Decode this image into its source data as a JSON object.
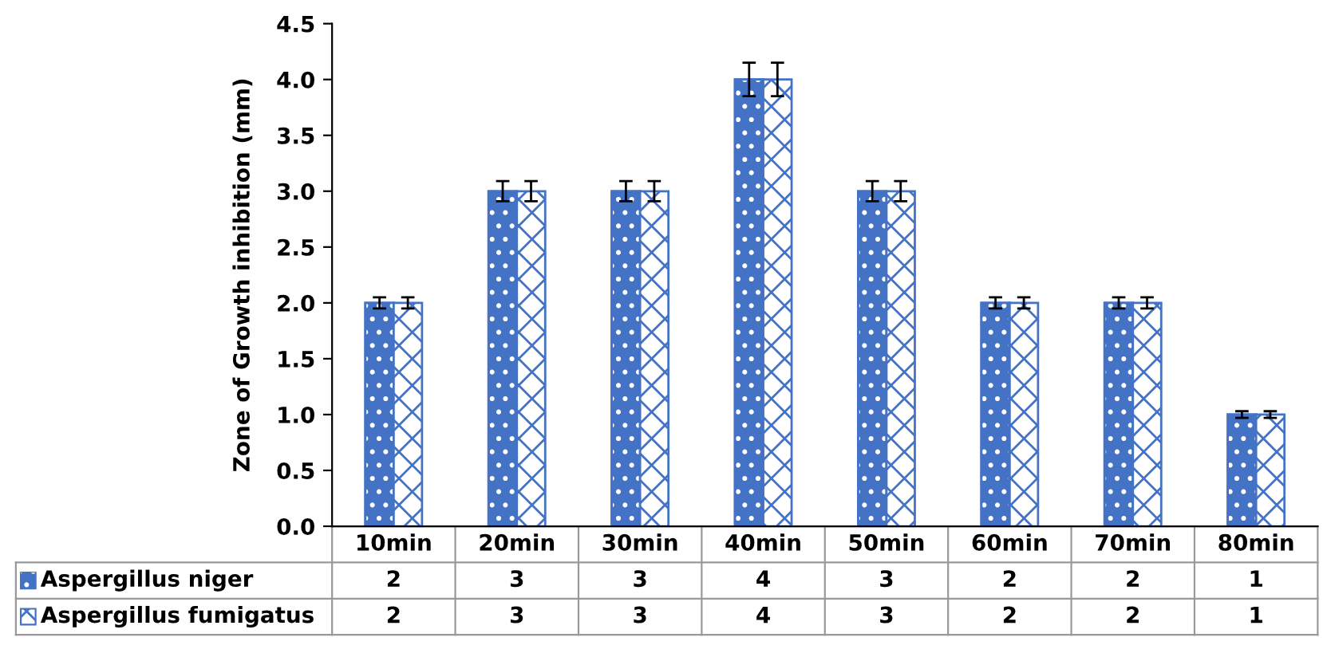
{
  "chart_data": {
    "type": "bar",
    "ylabel": "Zone of Growth inhibition (mm)",
    "categories": [
      "10min",
      "20min",
      "30min",
      "40min",
      "50min",
      "60min",
      "70min",
      "80min"
    ],
    "series": [
      {
        "name": "Aspergillus niger",
        "color": "#4472c4",
        "values": [
          2,
          3,
          3,
          4,
          3,
          2,
          2,
          1
        ],
        "errors": [
          0.05,
          0.09,
          0.09,
          0.15,
          0.09,
          0.05,
          0.05,
          0.03
        ]
      },
      {
        "name": "Aspergillus fumigatus",
        "color": "#4472c4",
        "values": [
          2,
          3,
          3,
          4,
          3,
          2,
          2,
          1
        ],
        "errors": [
          0.05,
          0.09,
          0.09,
          0.15,
          0.09,
          0.05,
          0.05,
          0.03
        ]
      }
    ],
    "ylim": [
      0,
      4.5
    ],
    "yticks": [
      {
        "value": 0,
        "label": "0.0"
      },
      {
        "value": 0.5,
        "label": "0.5"
      },
      {
        "value": 1,
        "label": "1.0"
      },
      {
        "value": 1.5,
        "label": "1.5"
      },
      {
        "value": 2,
        "label": "2.0"
      },
      {
        "value": 2.5,
        "label": "2.5"
      },
      {
        "value": 3,
        "label": "3.0"
      },
      {
        "value": 3.5,
        "label": "3.5"
      },
      {
        "value": 4,
        "label": "4.0"
      },
      {
        "value": 4.5,
        "label": "4.5"
      }
    ],
    "grid": false,
    "legend": "bottom",
    "data_labels": true
  }
}
